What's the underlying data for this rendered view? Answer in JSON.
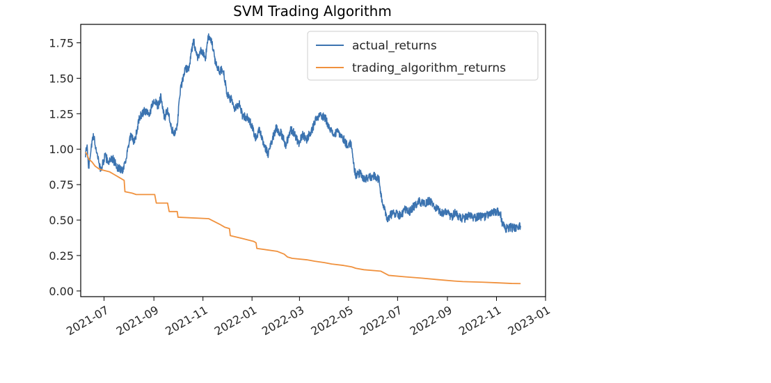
{
  "chart_data": {
    "type": "line",
    "title": "SVM Trading Algorithm",
    "xlabel": "",
    "ylabel": "",
    "x_ticks": [
      "2021-07",
      "2021-09",
      "2021-11",
      "2022-01",
      "2022-03",
      "2022-05",
      "2022-07",
      "2022-09",
      "2022-11",
      "2023-01"
    ],
    "y_ticks": [
      "0.00",
      "0.25",
      "0.50",
      "0.75",
      "1.00",
      "1.25",
      "1.50",
      "1.75"
    ],
    "xlim": [
      "2021-06-02",
      "2023-01-01"
    ],
    "ylim": [
      -0.04,
      1.88
    ],
    "grid": false,
    "legend_position": "upper right",
    "series": [
      {
        "name": "actual_returns",
        "color": "#3b73b0",
        "points": [
          [
            "2021-06-08",
            0.97
          ],
          [
            "2021-06-10",
            1.01
          ],
          [
            "2021-06-12",
            0.87
          ],
          [
            "2021-06-15",
            1.02
          ],
          [
            "2021-06-18",
            1.09
          ],
          [
            "2021-06-22",
            0.98
          ],
          [
            "2021-06-27",
            0.85
          ],
          [
            "2021-07-02",
            0.95
          ],
          [
            "2021-07-07",
            0.91
          ],
          [
            "2021-07-12",
            0.93
          ],
          [
            "2021-07-18",
            0.87
          ],
          [
            "2021-07-24",
            0.85
          ],
          [
            "2021-07-29",
            0.95
          ],
          [
            "2021-08-03",
            1.09
          ],
          [
            "2021-08-08",
            1.05
          ],
          [
            "2021-08-14",
            1.22
          ],
          [
            "2021-08-20",
            1.27
          ],
          [
            "2021-08-26",
            1.24
          ],
          [
            "2021-09-01",
            1.35
          ],
          [
            "2021-09-06",
            1.3
          ],
          [
            "2021-09-10",
            1.38
          ],
          [
            "2021-09-14",
            1.21
          ],
          [
            "2021-09-18",
            1.28
          ],
          [
            "2021-09-23",
            1.13
          ],
          [
            "2021-09-29",
            1.12
          ],
          [
            "2021-10-04",
            1.42
          ],
          [
            "2021-10-10",
            1.56
          ],
          [
            "2021-10-15",
            1.58
          ],
          [
            "2021-10-20",
            1.77
          ],
          [
            "2021-10-25",
            1.65
          ],
          [
            "2021-10-30",
            1.7
          ],
          [
            "2021-11-04",
            1.64
          ],
          [
            "2021-11-08",
            1.8
          ],
          [
            "2021-11-12",
            1.75
          ],
          [
            "2021-11-17",
            1.6
          ],
          [
            "2021-11-22",
            1.55
          ],
          [
            "2021-11-26",
            1.57
          ],
          [
            "2021-12-01",
            1.38
          ],
          [
            "2021-12-06",
            1.35
          ],
          [
            "2021-12-11",
            1.28
          ],
          [
            "2021-12-16",
            1.33
          ],
          [
            "2021-12-20",
            1.24
          ],
          [
            "2021-12-26",
            1.22
          ],
          [
            "2022-01-01",
            1.17
          ],
          [
            "2022-01-05",
            1.08
          ],
          [
            "2022-01-10",
            1.13
          ],
          [
            "2022-01-15",
            1.05
          ],
          [
            "2022-01-21",
            0.96
          ],
          [
            "2022-01-26",
            1.07
          ],
          [
            "2022-01-31",
            1.15
          ],
          [
            "2022-02-06",
            1.11
          ],
          [
            "2022-02-12",
            1.03
          ],
          [
            "2022-02-18",
            1.14
          ],
          [
            "2022-02-23",
            1.11
          ],
          [
            "2022-02-28",
            1.04
          ],
          [
            "2022-03-05",
            1.1
          ],
          [
            "2022-03-10",
            1.07
          ],
          [
            "2022-03-16",
            1.13
          ],
          [
            "2022-03-21",
            1.2
          ],
          [
            "2022-03-27",
            1.24
          ],
          [
            "2022-04-02",
            1.22
          ],
          [
            "2022-04-07",
            1.16
          ],
          [
            "2022-04-12",
            1.1
          ],
          [
            "2022-04-18",
            1.12
          ],
          [
            "2022-04-24",
            1.08
          ],
          [
            "2022-04-30",
            1.02
          ],
          [
            "2022-05-04",
            1.05
          ],
          [
            "2022-05-07",
            0.9
          ],
          [
            "2022-05-10",
            0.82
          ],
          [
            "2022-05-15",
            0.83
          ],
          [
            "2022-05-21",
            0.79
          ],
          [
            "2022-05-27",
            0.8
          ],
          [
            "2022-06-02",
            0.81
          ],
          [
            "2022-06-08",
            0.78
          ],
          [
            "2022-06-12",
            0.62
          ],
          [
            "2022-06-16",
            0.55
          ],
          [
            "2022-06-18",
            0.51
          ],
          [
            "2022-06-23",
            0.54
          ],
          [
            "2022-06-29",
            0.55
          ],
          [
            "2022-07-05",
            0.53
          ],
          [
            "2022-07-10",
            0.57
          ],
          [
            "2022-07-16",
            0.56
          ],
          [
            "2022-07-22",
            0.6
          ],
          [
            "2022-07-28",
            0.63
          ],
          [
            "2022-08-04",
            0.61
          ],
          [
            "2022-08-10",
            0.64
          ],
          [
            "2022-08-15",
            0.6
          ],
          [
            "2022-08-20",
            0.57
          ],
          [
            "2022-08-26",
            0.55
          ],
          [
            "2022-09-01",
            0.56
          ],
          [
            "2022-09-06",
            0.52
          ],
          [
            "2022-09-10",
            0.55
          ],
          [
            "2022-09-16",
            0.52
          ],
          [
            "2022-09-22",
            0.51
          ],
          [
            "2022-09-28",
            0.53
          ],
          [
            "2022-10-04",
            0.51
          ],
          [
            "2022-10-10",
            0.53
          ],
          [
            "2022-10-16",
            0.52
          ],
          [
            "2022-10-22",
            0.54
          ],
          [
            "2022-10-28",
            0.55
          ],
          [
            "2022-11-03",
            0.56
          ],
          [
            "2022-11-06",
            0.54
          ],
          [
            "2022-11-09",
            0.46
          ],
          [
            "2022-11-13",
            0.44
          ],
          [
            "2022-11-18",
            0.45
          ],
          [
            "2022-11-24",
            0.44
          ],
          [
            "2022-11-29",
            0.46
          ],
          [
            "2022-12-01",
            0.46
          ]
        ]
      },
      {
        "name": "trading_algorithm_returns",
        "color": "#f0913d",
        "points": [
          [
            "2021-06-08",
            0.98
          ],
          [
            "2021-06-10",
            0.96
          ],
          [
            "2021-06-12",
            0.93
          ],
          [
            "2021-06-16",
            0.91
          ],
          [
            "2021-06-20",
            0.88
          ],
          [
            "2021-06-25",
            0.86
          ],
          [
            "2021-07-01",
            0.85
          ],
          [
            "2021-07-08",
            0.84
          ],
          [
            "2021-07-14",
            0.82
          ],
          [
            "2021-07-20",
            0.8
          ],
          [
            "2021-07-26",
            0.78
          ],
          [
            "2021-07-27",
            0.7
          ],
          [
            "2021-08-05",
            0.69
          ],
          [
            "2021-08-10",
            0.68
          ],
          [
            "2021-09-02",
            0.68
          ],
          [
            "2021-09-04",
            0.62
          ],
          [
            "2021-09-18",
            0.62
          ],
          [
            "2021-09-20",
            0.56
          ],
          [
            "2021-09-30",
            0.56
          ],
          [
            "2021-10-01",
            0.52
          ],
          [
            "2021-11-08",
            0.51
          ],
          [
            "2021-11-15",
            0.49
          ],
          [
            "2021-11-22",
            0.47
          ],
          [
            "2021-11-28",
            0.45
          ],
          [
            "2021-12-04",
            0.44
          ],
          [
            "2021-12-05",
            0.39
          ],
          [
            "2021-12-20",
            0.37
          ],
          [
            "2022-01-03",
            0.35
          ],
          [
            "2022-01-06",
            0.34
          ],
          [
            "2022-01-07",
            0.3
          ],
          [
            "2022-02-01",
            0.28
          ],
          [
            "2022-02-10",
            0.26
          ],
          [
            "2022-02-14",
            0.24
          ],
          [
            "2022-02-20",
            0.23
          ],
          [
            "2022-03-10",
            0.22
          ],
          [
            "2022-03-20",
            0.21
          ],
          [
            "2022-04-01",
            0.2
          ],
          [
            "2022-04-10",
            0.19
          ],
          [
            "2022-04-25",
            0.18
          ],
          [
            "2022-05-05",
            0.17
          ],
          [
            "2022-05-10",
            0.16
          ],
          [
            "2022-05-20",
            0.15
          ],
          [
            "2022-06-10",
            0.14
          ],
          [
            "2022-06-20",
            0.11
          ],
          [
            "2022-07-10",
            0.1
          ],
          [
            "2022-08-01",
            0.09
          ],
          [
            "2022-08-20",
            0.08
          ],
          [
            "2022-09-10",
            0.07
          ],
          [
            "2022-09-20",
            0.066
          ],
          [
            "2022-10-15",
            0.062
          ],
          [
            "2022-11-01",
            0.058
          ],
          [
            "2022-11-20",
            0.053
          ],
          [
            "2022-12-01",
            0.052
          ]
        ]
      }
    ]
  }
}
